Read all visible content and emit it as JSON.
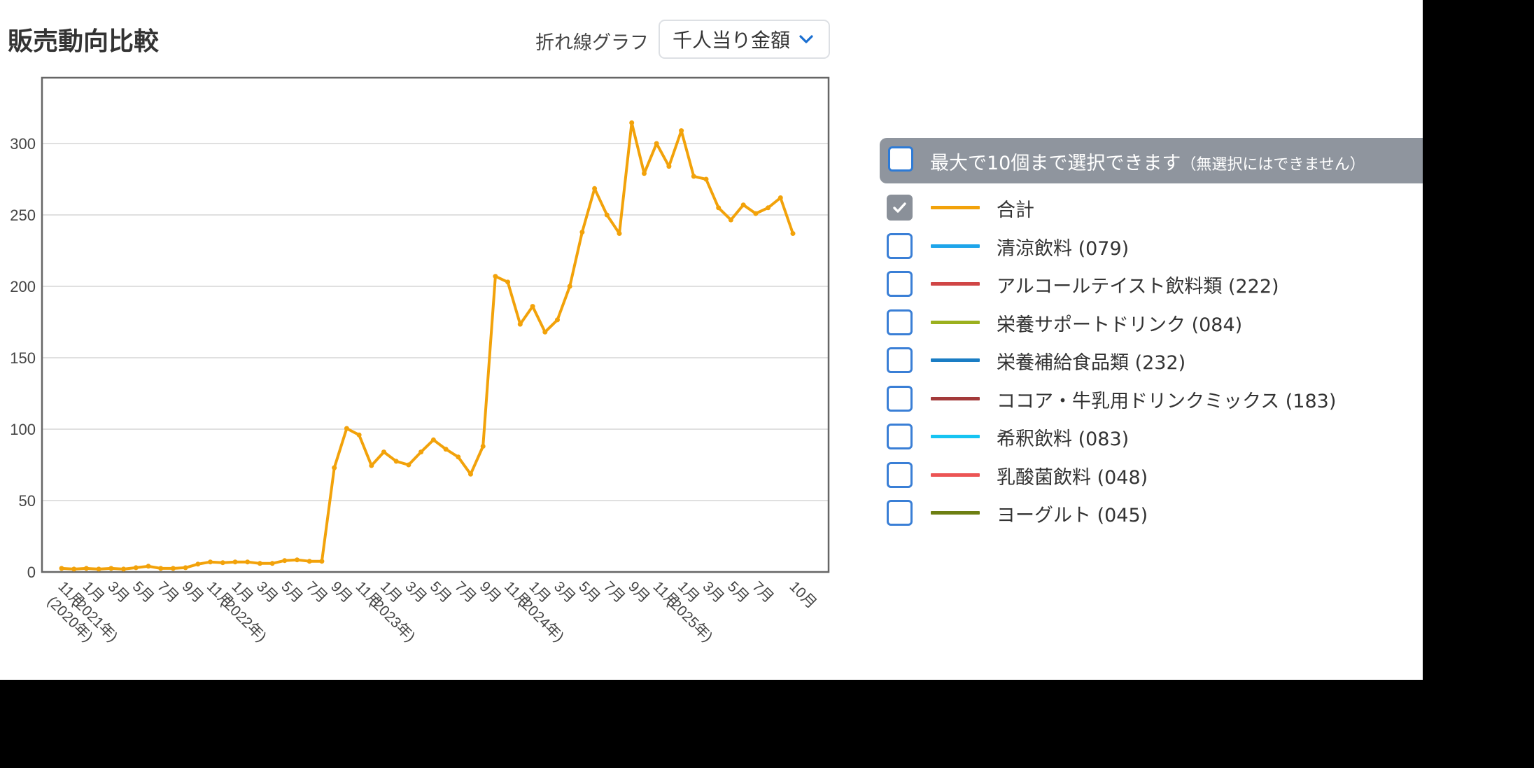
{
  "header": {
    "title": "販売動向比較",
    "chart_type_label": "折れ線グラフ",
    "metric_select": {
      "value": "千人当り金額"
    }
  },
  "legend": {
    "header_text": "最大で10個まで選択できます",
    "header_note": "（無選択にはできません）",
    "header_checked": false,
    "items": [
      {
        "label": "合計",
        "color": "#f2a20a",
        "checked": true
      },
      {
        "label": "清涼飲料 (079)",
        "color": "#1ea5ea",
        "checked": false
      },
      {
        "label": "アルコールテイスト飲料類 (222)",
        "color": "#d04545",
        "checked": false
      },
      {
        "label": "栄養サポートドリンク (084)",
        "color": "#9bb01e",
        "checked": false
      },
      {
        "label": "栄養補給食品類 (232)",
        "color": "#1a7dc4",
        "checked": false
      },
      {
        "label": "ココア・牛乳用ドリンクミックス (183)",
        "color": "#a33a3a",
        "checked": false
      },
      {
        "label": "希釈飲料 (083)",
        "color": "#16c4f2",
        "checked": false
      },
      {
        "label": "乳酸菌飲料 (048)",
        "color": "#ec5454",
        "checked": false
      },
      {
        "label": "ヨーグルト (045)",
        "color": "#6d7f12",
        "checked": false
      }
    ]
  },
  "chart_data": {
    "type": "line",
    "title": "販売動向比較",
    "xlabel": "",
    "ylabel": "千人当り金額",
    "ylim": [
      0,
      345
    ],
    "yticks": [
      0,
      50,
      100,
      150,
      200,
      250,
      300
    ],
    "grid": true,
    "legend_position": "right",
    "x": [
      "2020-11",
      "2020-12",
      "2021-01",
      "2021-02",
      "2021-03",
      "2021-04",
      "2021-05",
      "2021-06",
      "2021-07",
      "2021-08",
      "2021-09",
      "2021-10",
      "2021-11",
      "2021-12",
      "2022-01",
      "2022-02",
      "2022-03",
      "2022-04",
      "2022-05",
      "2022-06",
      "2022-07",
      "2022-08",
      "2022-09",
      "2022-10",
      "2022-11",
      "2022-12",
      "2023-01",
      "2023-02",
      "2023-03",
      "2023-04",
      "2023-05",
      "2023-06",
      "2023-07",
      "2023-08",
      "2023-09",
      "2023-10",
      "2023-11",
      "2023-12",
      "2024-01",
      "2024-02",
      "2024-03",
      "2024-04",
      "2024-05",
      "2024-06",
      "2024-07",
      "2024-08",
      "2024-09",
      "2024-10",
      "2024-11",
      "2024-12",
      "2025-01",
      "2025-02",
      "2025-03",
      "2025-04",
      "2025-05",
      "2025-06",
      "2025-07",
      "2025-08",
      "2025-09",
      "2025-10"
    ],
    "tick_labels": [
      {
        "i": 0,
        "label": "11月",
        "sub": "(2020年)"
      },
      {
        "i": 2,
        "label": "1月",
        "sub": "(2021年)"
      },
      {
        "i": 4,
        "label": "3月"
      },
      {
        "i": 6,
        "label": "5月"
      },
      {
        "i": 8,
        "label": "7月"
      },
      {
        "i": 10,
        "label": "9月"
      },
      {
        "i": 12,
        "label": "11月"
      },
      {
        "i": 14,
        "label": "1月",
        "sub": "(2022年)"
      },
      {
        "i": 16,
        "label": "3月"
      },
      {
        "i": 18,
        "label": "5月"
      },
      {
        "i": 20,
        "label": "7月"
      },
      {
        "i": 22,
        "label": "9月"
      },
      {
        "i": 24,
        "label": "11月"
      },
      {
        "i": 26,
        "label": "1月",
        "sub": "(2023年)"
      },
      {
        "i": 28,
        "label": "3月"
      },
      {
        "i": 30,
        "label": "5月"
      },
      {
        "i": 32,
        "label": "7月"
      },
      {
        "i": 34,
        "label": "9月"
      },
      {
        "i": 36,
        "label": "11月"
      },
      {
        "i": 38,
        "label": "1月",
        "sub": "(2024年)"
      },
      {
        "i": 40,
        "label": "3月"
      },
      {
        "i": 42,
        "label": "5月"
      },
      {
        "i": 44,
        "label": "7月"
      },
      {
        "i": 46,
        "label": "9月"
      },
      {
        "i": 48,
        "label": "11月"
      },
      {
        "i": 50,
        "label": "1月",
        "sub": "(2025年)"
      },
      {
        "i": 52,
        "label": "3月"
      },
      {
        "i": 54,
        "label": "5月"
      },
      {
        "i": 56,
        "label": "7月"
      },
      {
        "i": 59,
        "label": "10月"
      }
    ],
    "series": [
      {
        "name": "合計",
        "color": "#f2a20a",
        "values": [
          2.5,
          2,
          2.5,
          2,
          2.5,
          2,
          3,
          4,
          2.5,
          2.5,
          3,
          5.5,
          7,
          6.5,
          7,
          7,
          6,
          6,
          8,
          8.5,
          7.5,
          7.5,
          73,
          100.5,
          96,
          74.5,
          84,
          77.5,
          75,
          84,
          92.5,
          86,
          80.5,
          68.5,
          88,
          207,
          203,
          173.5,
          186,
          168,
          176.5,
          200,
          238,
          268.5,
          250,
          237,
          314.5,
          279,
          300,
          284,
          309,
          277,
          275,
          255,
          246.5,
          257,
          251,
          255,
          262,
          237
        ]
      }
    ]
  }
}
